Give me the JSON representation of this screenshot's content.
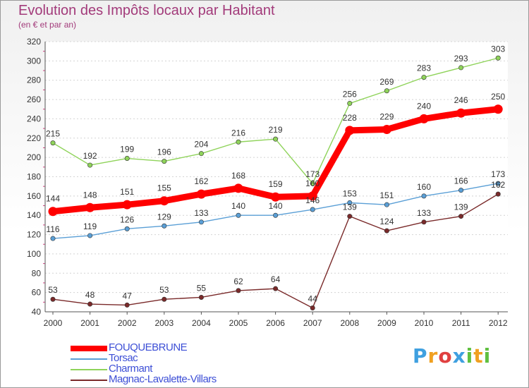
{
  "chart_data": {
    "type": "line",
    "title": "Evolution des Impôts locaux par Habitant",
    "subtitle": "(en € et par an)",
    "xlabel": "",
    "ylabel": "",
    "ylim": [
      40,
      320
    ],
    "y_ticks": [
      40,
      60,
      80,
      100,
      120,
      140,
      160,
      180,
      200,
      220,
      240,
      260,
      280,
      300,
      320
    ],
    "categories": [
      "2000",
      "2001",
      "2002",
      "2003",
      "2004",
      "2005",
      "2006",
      "2007",
      "2008",
      "2009",
      "2010",
      "2011",
      "2012"
    ],
    "series": [
      {
        "name": "FOUQUEBRUNE",
        "color": "#ff0000",
        "highlight": true,
        "values": [
          144,
          148,
          151,
          155,
          162,
          168,
          159,
          160,
          228,
          229,
          240,
          246,
          250
        ]
      },
      {
        "name": "Torsac",
        "color": "#5a9fd6",
        "highlight": false,
        "values": [
          116,
          119,
          126,
          129,
          133,
          140,
          140,
          146,
          153,
          151,
          160,
          166,
          173
        ]
      },
      {
        "name": "Charmant",
        "color": "#8fd35a",
        "highlight": false,
        "values": [
          215,
          192,
          199,
          196,
          204,
          216,
          219,
          173,
          256,
          269,
          283,
          293,
          303
        ]
      },
      {
        "name": "Magnac-Lavalette-Villars",
        "color": "#7a2a2a",
        "highlight": false,
        "values": [
          53,
          48,
          47,
          53,
          55,
          62,
          64,
          44,
          139,
          124,
          133,
          139,
          162
        ]
      }
    ],
    "data_labels": {
      "FOUQUEBRUNE": [
        "144",
        "148",
        "151",
        "155",
        "162",
        "168",
        "159",
        "160",
        "228",
        "229",
        "240",
        "246",
        "250"
      ],
      "Torsac": [
        "116",
        "119",
        "126",
        "129",
        "133",
        "140",
        "140",
        "146",
        "153",
        "151",
        "160",
        "166",
        "173"
      ],
      "Charmant": [
        "215",
        "192",
        "199",
        "196",
        "204",
        "216",
        "219",
        "173",
        "256",
        "269",
        "283",
        "293",
        "303"
      ],
      "Magnac-Lavalette-Villars": [
        "53",
        "48",
        "47",
        "53",
        "55",
        "62",
        "64",
        "44",
        "139",
        "124",
        "133",
        "139",
        "162"
      ]
    },
    "legend_position": "bottom-left"
  },
  "logo": {
    "letters": [
      "P",
      "r",
      "o",
      "x",
      "i",
      "t",
      "i"
    ],
    "colors": [
      "#3fa0e0",
      "#f0a020",
      "#e04040",
      "#3fa0e0",
      "#60c040",
      "#f0a020",
      "#60c040"
    ]
  }
}
